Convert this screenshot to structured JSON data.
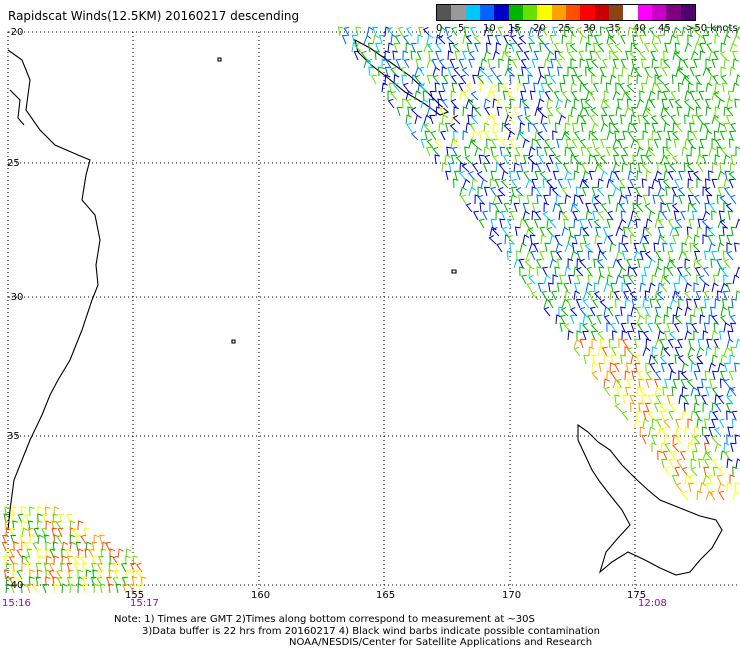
{
  "title": "Rapidscat Winds(12.5KM) 20160217 descending",
  "legend": {
    "colors": [
      "#555555",
      "#999999",
      "#00c8ff",
      "#0064ff",
      "#0000c8",
      "#00b400",
      "#66e000",
      "#ffff00",
      "#ffa000",
      "#ff5000",
      "#ff0000",
      "#c80000",
      "#8b4513",
      "#ffffff",
      "#ff00ff",
      "#c800c8",
      "#800080",
      "#500070"
    ],
    "labels": [
      "0",
      "5",
      "10",
      "15",
      "20",
      "25",
      "30",
      "35",
      "40",
      "45",
      ">50 knots"
    ]
  },
  "axes": {
    "lon_labels": [
      "155",
      "160",
      "165",
      "170",
      "175"
    ],
    "lat_labels": [
      "-20",
      "25",
      "-30",
      "35",
      "-40"
    ]
  },
  "times": {
    "t1": "15:16",
    "t2": "15:17",
    "t3": "12:08"
  },
  "notes": {
    "line1": "Note: 1) Times are GMT 2)Times along bottom correspond to measurement at ~30S",
    "line2": "3)Data buffer is 22 hrs from 20160217 4) Black wind barbs indicate possible contamination",
    "line3": "NOAA/NESDIS/Center for Satellite Applications and Research"
  }
}
